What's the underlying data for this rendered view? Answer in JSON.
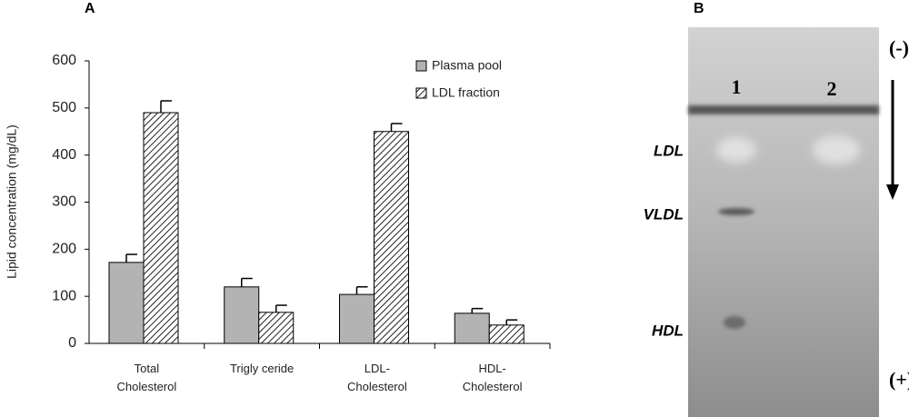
{
  "chart_data": {
    "type": "bar",
    "panel_label": "A",
    "y_label": "Lipid concentration (mg/dL)",
    "categories": [
      "Total Cholesterol",
      "Trigly ceride",
      "LDL- Cholesterol",
      "HDL- Cholesterol"
    ],
    "series": [
      {
        "name": "Plasma pool",
        "color": "#b3b3b3",
        "values": [
          172,
          120,
          104,
          64
        ],
        "errors": [
          17,
          18,
          16,
          10
        ]
      },
      {
        "name": "LDL fraction",
        "color": "#ffffff",
        "pattern": "hatch",
        "values": [
          490,
          66,
          450,
          39
        ],
        "errors": [
          25,
          15,
          17,
          11
        ]
      }
    ],
    "ylim": [
      0,
      600
    ],
    "yticks": [
      0,
      100,
      200,
      300,
      400,
      500,
      600
    ],
    "grid": false,
    "legend": "top-right"
  },
  "gel": {
    "panel_label": "B",
    "cathode": "(-)",
    "anode": "(+)",
    "lanes": [
      "1",
      "2"
    ],
    "bands": [
      "LDL",
      "VLDL",
      "HDL"
    ]
  }
}
